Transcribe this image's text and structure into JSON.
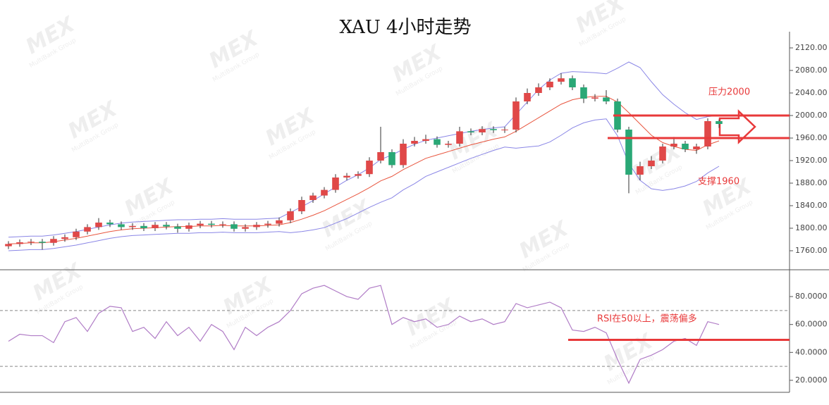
{
  "chart_data": [
    {
      "type": "candlestick",
      "title": "XAU 4小时走势",
      "open": [
        1768,
        1772,
        1775,
        1776,
        1774,
        1781,
        1784,
        1794,
        1802,
        1810,
        1807,
        1802,
        1804,
        1800,
        1806,
        1803,
        1799,
        1805,
        1808,
        1806,
        1807,
        1799,
        1802,
        1806,
        1808,
        1814,
        1830,
        1850,
        1858,
        1868,
        1890,
        1893,
        1896,
        1920,
        1935,
        1912,
        1950,
        1955,
        1958,
        1948,
        1950,
        1972,
        1970,
        1976,
        1974,
        1975,
        2025,
        2040,
        2050,
        2060,
        2066,
        2050,
        2030,
        2032,
        2025,
        1975,
        1895,
        1910,
        1920,
        1945,
        1950,
        1940,
        1945,
        1990
      ],
      "high": [
        1777,
        1780,
        1781,
        1781,
        1786,
        1789,
        1799,
        1807,
        1818,
        1815,
        1812,
        1809,
        1809,
        1811,
        1811,
        1808,
        1810,
        1813,
        1813,
        1812,
        1812,
        1807,
        1811,
        1813,
        1819,
        1835,
        1856,
        1863,
        1873,
        1896,
        1898,
        1901,
        1926,
        1980,
        1940,
        1958,
        1962,
        1966,
        1963,
        1955,
        1980,
        1977,
        1981,
        1981,
        1980,
        2032,
        2048,
        2057,
        2066,
        2075,
        2071,
        2055,
        2038,
        2045,
        2030,
        1980,
        1918,
        1928,
        1950,
        1962,
        1955,
        1950,
        1995,
        1993
      ],
      "low": [
        1763,
        1767,
        1770,
        1762,
        1769,
        1776,
        1779,
        1789,
        1797,
        1802,
        1797,
        1797,
        1795,
        1795,
        1798,
        1792,
        1794,
        1800,
        1801,
        1801,
        1794,
        1794,
        1797,
        1801,
        1803,
        1809,
        1825,
        1845,
        1853,
        1863,
        1885,
        1888,
        1891,
        1915,
        1907,
        1907,
        1945,
        1950,
        1943,
        1943,
        1945,
        1965,
        1965,
        1969,
        1969,
        1970,
        2020,
        2035,
        2045,
        2055,
        2045,
        2022,
        2025,
        2020,
        1970,
        1862,
        1885,
        1905,
        1915,
        1940,
        1935,
        1932,
        1940,
        1978
      ],
      "close": [
        1772,
        1775,
        1776,
        1774,
        1781,
        1784,
        1794,
        1802,
        1810,
        1807,
        1802,
        1804,
        1800,
        1806,
        1803,
        1799,
        1805,
        1808,
        1806,
        1807,
        1799,
        1802,
        1806,
        1808,
        1814,
        1830,
        1850,
        1858,
        1868,
        1890,
        1893,
        1896,
        1920,
        1935,
        1912,
        1950,
        1955,
        1958,
        1948,
        1950,
        1972,
        1970,
        1976,
        1974,
        1975,
        2025,
        2040,
        2050,
        2060,
        2066,
        2050,
        2030,
        2032,
        2025,
        1975,
        1895,
        1910,
        1920,
        1945,
        1950,
        1940,
        1945,
        1990,
        1985
      ],
      "up_color": "#e04848",
      "down_color": "#2aa876",
      "overlays": [
        {
          "color": "#8a86e6",
          "values": [
            1784,
            1785,
            1786,
            1786,
            1788,
            1791,
            1794,
            1798,
            1802,
            1806,
            1809,
            1811,
            1812,
            1813,
            1814,
            1815,
            1815,
            1816,
            1816,
            1817,
            1816,
            1816,
            1816,
            1817,
            1818,
            1828,
            1838,
            1849,
            1861,
            1873,
            1885,
            1895,
            1907,
            1922,
            1930,
            1940,
            1949,
            1956,
            1960,
            1964,
            1968,
            1972,
            1975,
            1978,
            1980,
            2002,
            2024,
            2046,
            2063,
            2075,
            2078,
            2077,
            2076,
            2074,
            2084,
            2095,
            2085,
            2060,
            2037,
            2020,
            2005,
            1993,
            1998,
            2000
          ]
        },
        {
          "color": "#e8553e",
          "values": [
            1772,
            1773,
            1774,
            1774,
            1776,
            1779,
            1782,
            1786,
            1790,
            1794,
            1797,
            1799,
            1800,
            1801,
            1802,
            1803,
            1803,
            1804,
            1804,
            1805,
            1804,
            1804,
            1804,
            1805,
            1806,
            1810,
            1816,
            1823,
            1831,
            1841,
            1851,
            1861,
            1872,
            1884,
            1892,
            1904,
            1914,
            1924,
            1930,
            1936,
            1942,
            1948,
            1953,
            1958,
            1962,
            1972,
            1984,
            1996,
            2008,
            2020,
            2028,
            2032,
            2034,
            2034,
            2024,
            2005,
            1985,
            1965,
            1952,
            1945,
            1940,
            1938,
            1948,
            1955
          ]
        },
        {
          "color": "#8a86e6",
          "values": [
            1760,
            1761,
            1762,
            1762,
            1764,
            1767,
            1770,
            1774,
            1778,
            1782,
            1785,
            1787,
            1788,
            1789,
            1790,
            1791,
            1791,
            1792,
            1792,
            1793,
            1792,
            1792,
            1792,
            1793,
            1794,
            1792,
            1794,
            1797,
            1801,
            1809,
            1817,
            1827,
            1837,
            1846,
            1854,
            1868,
            1879,
            1892,
            1900,
            1908,
            1916,
            1924,
            1931,
            1938,
            1944,
            1942,
            1944,
            1946,
            1953,
            1965,
            1978,
            1987,
            1992,
            1994,
            1964,
            1915,
            1885,
            1870,
            1867,
            1870,
            1875,
            1883,
            1898,
            1910
          ]
        }
      ],
      "ylim": [
        1726.25,
        2148.75
      ],
      "yticks": [
        {
          "value": 2120,
          "label": "2120.00"
        },
        {
          "value": 2080,
          "label": "2080.00"
        },
        {
          "value": 2040,
          "label": "2040.00"
        },
        {
          "value": 2000,
          "label": "2000.00"
        },
        {
          "value": 1960,
          "label": "1960.00"
        },
        {
          "value": 1920,
          "label": "1920.00"
        },
        {
          "value": 1880,
          "label": "1880.00"
        },
        {
          "value": 1840,
          "label": "1840.00"
        },
        {
          "value": 1800,
          "label": "1800.00"
        },
        {
          "value": 1760,
          "label": "1760.00"
        }
      ],
      "levels": [
        {
          "value": 2000,
          "color": "#e8393a"
        },
        {
          "value": 1960,
          "color": "#e8393a"
        }
      ],
      "annotations": [
        "压力2000",
        "支撑1960"
      ],
      "watermark": [
        "MEX",
        "MultiBank Group"
      ]
    },
    {
      "type": "line",
      "color": "#b07cc6",
      "values": [
        48,
        53,
        52,
        52,
        47,
        62,
        65,
        55,
        68,
        73,
        72,
        55,
        58,
        50,
        62,
        52,
        58,
        48,
        60,
        55,
        42,
        58,
        52,
        58,
        62,
        70,
        82,
        86,
        88,
        84,
        80,
        78,
        86,
        88,
        60,
        65,
        62,
        64,
        58,
        60,
        66,
        62,
        64,
        60,
        62,
        75,
        72,
        74,
        76,
        72,
        56,
        55,
        58,
        54,
        35,
        18,
        35,
        38,
        42,
        48,
        50,
        45,
        62,
        60
      ],
      "ylim": [
        11.4,
        99.2
      ],
      "yticks": [
        {
          "value": 80,
          "label": "80.0000"
        },
        {
          "value": 60,
          "label": "60.0000"
        },
        {
          "value": 40,
          "label": "40.0000"
        },
        {
          "value": 20,
          "label": "20.0000"
        }
      ],
      "reference_lines": [
        70,
        30
      ],
      "levels": [
        {
          "value": 49,
          "color": "#e8393a"
        }
      ],
      "annotations": [
        "RSI在50以上，震荡偏多"
      ]
    }
  ]
}
